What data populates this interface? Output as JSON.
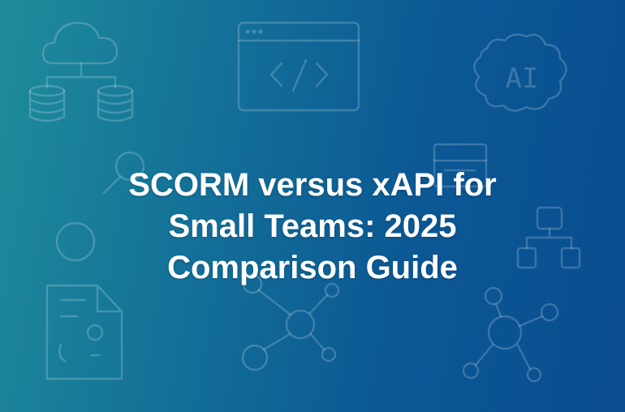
{
  "hero": {
    "title_lines": [
      "SCORM versus xAPI for",
      "Small Teams: 2025",
      "Comparison Guide"
    ],
    "ai_label": "AI",
    "colors": {
      "gradient_start": "#1f8c9b",
      "gradient_end": "#0a4d90",
      "text": "#ffffff"
    },
    "icons": [
      "cloud-database-icon",
      "code-window-icon",
      "ai-cloud-icon",
      "magnifier-icon",
      "window-icon",
      "circle-icon",
      "org-chart-icon",
      "document-icon",
      "network-icon",
      "network-icon"
    ]
  }
}
